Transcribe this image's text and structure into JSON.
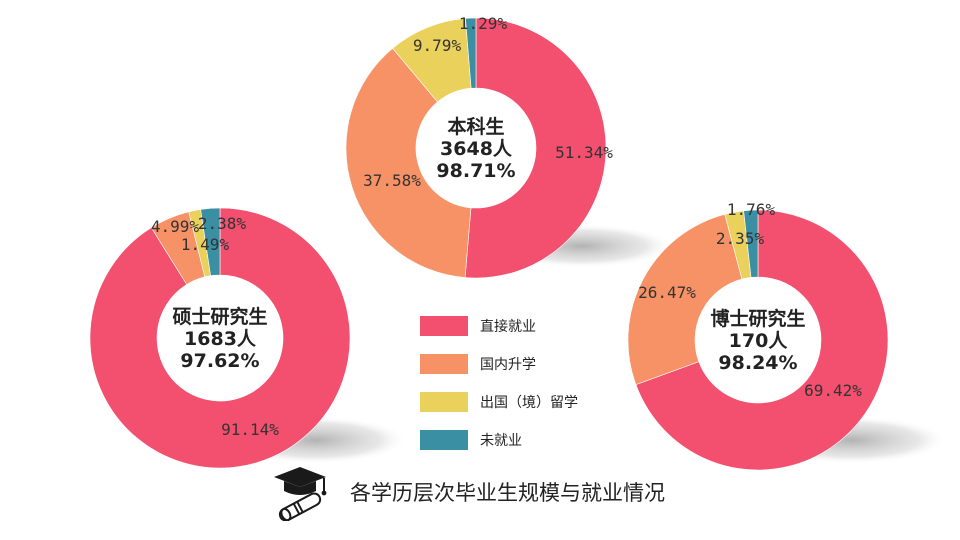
{
  "chart_data": [
    {
      "type": "pie",
      "donut": true,
      "center_lines": [
        "本科生",
        "3648人",
        "98.71%"
      ],
      "slices": [
        {
          "name": "直接就业",
          "value": 51.34,
          "label": "51.34%"
        },
        {
          "name": "国内升学",
          "value": 37.58,
          "label": "37.58%"
        },
        {
          "name": "出国（境）留学",
          "value": 9.79,
          "label": "9.79%"
        },
        {
          "name": "未就业",
          "value": 1.29,
          "label": "1.29%"
        }
      ]
    },
    {
      "type": "pie",
      "donut": true,
      "center_lines": [
        "硕士研究生",
        "1683人",
        "97.62%"
      ],
      "slices": [
        {
          "name": "直接就业",
          "value": 91.14,
          "label": "91.14%"
        },
        {
          "name": "国内升学",
          "value": 4.99,
          "label": "4.99%"
        },
        {
          "name": "出国（境）留学",
          "value": 1.49,
          "label": "1.49%"
        },
        {
          "name": "未就业",
          "value": 2.38,
          "label": "2.38%"
        }
      ]
    },
    {
      "type": "pie",
      "donut": true,
      "center_lines": [
        "博士研究生",
        "170人",
        "98.24%"
      ],
      "slices": [
        {
          "name": "直接就业",
          "value": 69.42,
          "label": "69.42%"
        },
        {
          "name": "国内升学",
          "value": 26.47,
          "label": "26.47%"
        },
        {
          "name": "出国（境）留学",
          "value": 2.35,
          "label": "2.35%"
        },
        {
          "name": "未就业",
          "value": 1.76,
          "label": "1.76%"
        }
      ]
    }
  ],
  "legend": [
    {
      "label": "直接就业",
      "color": "#f2506e"
    },
    {
      "label": "国内升学",
      "color": "#f79266"
    },
    {
      "label": "出国（境）留学",
      "color": "#e9d15c"
    },
    {
      "label": "未就业",
      "color": "#3a8fa3"
    }
  ],
  "footer": {
    "title": "各学历层次毕业生规模与就业情况",
    "icon": "graduation-cap-diploma-icon"
  }
}
